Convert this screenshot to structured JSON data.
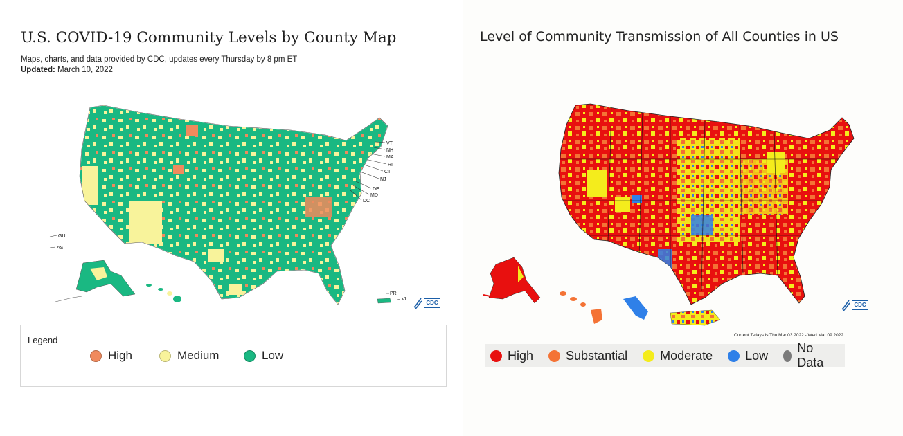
{
  "left": {
    "title": "U.S. COVID-19 Community Levels by County Map",
    "subtitle": "Maps, charts, and data provided by CDC, updates every Thursday by 8 pm ET",
    "updated_label": "Updated:",
    "updated_value": "March 10, 2022",
    "legend_title": "Legend",
    "legend": [
      {
        "label": "High",
        "color": "#f08a5d"
      },
      {
        "label": "Medium",
        "color": "#f8f39b"
      },
      {
        "label": "Low",
        "color": "#1ab882"
      }
    ],
    "state_labels": [
      "VT",
      "NH",
      "MA",
      "RI",
      "CT",
      "NJ",
      "DE",
      "MD",
      "DC"
    ],
    "territory_labels": [
      "GU",
      "AS",
      "PR",
      "VI"
    ],
    "logo_text": "CDC",
    "colors": {
      "low": "#1ab882",
      "medium": "#f8f39b",
      "high": "#f08a5d"
    }
  },
  "right": {
    "title": "Level of Community Transmission of All Counties in US",
    "footnote": "Current 7-days is Thu Mar 03 2022 - Wed Mar 09 2022",
    "legend": [
      {
        "label": "High",
        "color": "#e8100f"
      },
      {
        "label": "Substantial",
        "color": "#f47335"
      },
      {
        "label": "Moderate",
        "color": "#f4ec1c"
      },
      {
        "label": "Low",
        "color": "#2f80e8"
      },
      {
        "label": "No Data",
        "color": "#7b7b7b"
      }
    ],
    "logo_text": "CDC",
    "colors": {
      "high": "#e8100f",
      "substantial": "#f47335",
      "moderate": "#f4ec1c",
      "low": "#2f80e8"
    }
  }
}
